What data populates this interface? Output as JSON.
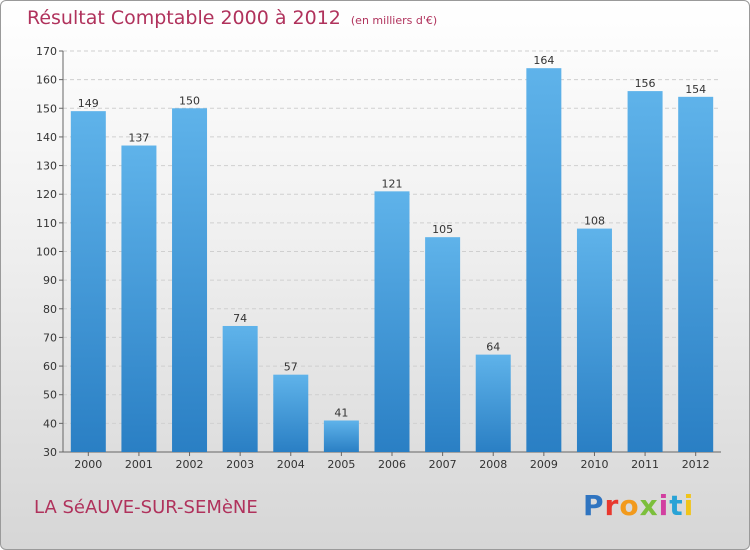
{
  "header": {
    "title": "Résultat Comptable 2000 à 2012",
    "subtitle": "(en milliers d'€)"
  },
  "footer": {
    "town": "LA SéAUVE-SUR-SEMèNE",
    "brand_letters": [
      "P",
      "r",
      "o",
      "x",
      "i",
      "t",
      "i"
    ]
  },
  "colors": {
    "bar_top": "#5fb3ea",
    "bar_bottom": "#2a7fc4",
    "title": "#b0325c"
  },
  "chart_data": {
    "type": "bar",
    "title": "Résultat Comptable 2000 à 2012",
    "subtitle": "(en milliers d'€)",
    "categories": [
      "2000",
      "2001",
      "2002",
      "2003",
      "2004",
      "2005",
      "2006",
      "2007",
      "2008",
      "2009",
      "2010",
      "2011",
      "2012"
    ],
    "values": [
      149,
      137,
      150,
      74,
      57,
      41,
      121,
      105,
      64,
      164,
      108,
      156,
      154
    ],
    "ylim": [
      30,
      170
    ],
    "yticks": [
      30,
      40,
      50,
      60,
      70,
      80,
      90,
      100,
      110,
      120,
      130,
      140,
      150,
      160,
      170
    ],
    "grid": true,
    "data_labels": true
  }
}
